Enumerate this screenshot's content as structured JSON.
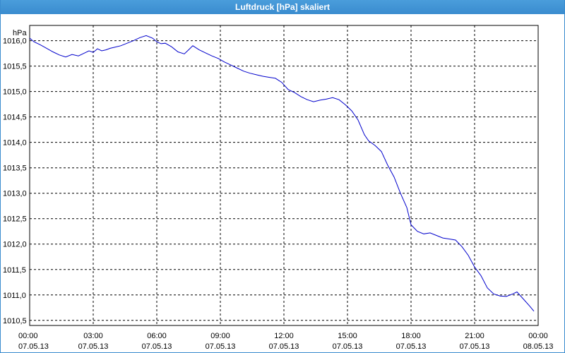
{
  "window": {
    "title": "Luftdruck [hPa] skaliert"
  },
  "colors": {
    "titlebar": "#3a8ccf",
    "line": "#0000cc",
    "grid": "#000000"
  },
  "chart_data": {
    "type": "line",
    "title": "Luftdruck [hPa] skaliert",
    "ylabel": "hPa",
    "xlabel": "",
    "x_unit": "hours since 07.05.13 00:00",
    "xlim": [
      0,
      24
    ],
    "ylim": [
      1010.4,
      1016.3
    ],
    "grid": true,
    "y_ticks": [
      "1010,5",
      "1011,0",
      "1011,5",
      "1012,0",
      "1012,5",
      "1013,0",
      "1013,5",
      "1014,0",
      "1014,5",
      "1015,0",
      "1015,5",
      "1016,0"
    ],
    "y_tick_values": [
      1010.5,
      1011.0,
      1011.5,
      1012.0,
      1012.5,
      1013.0,
      1013.5,
      1014.0,
      1014.5,
      1015.0,
      1015.5,
      1016.0
    ],
    "x_ticks": [
      {
        "time": "00:00",
        "date": "07.05.13",
        "x": 0
      },
      {
        "time": "03:00",
        "date": "07.05.13",
        "x": 3
      },
      {
        "time": "06:00",
        "date": "07.05.13",
        "x": 6
      },
      {
        "time": "09:00",
        "date": "07.05.13",
        "x": 9
      },
      {
        "time": "12:00",
        "date": "07.05.13",
        "x": 12
      },
      {
        "time": "15:00",
        "date": "07.05.13",
        "x": 15
      },
      {
        "time": "18:00",
        "date": "07.05.13",
        "x": 18
      },
      {
        "time": "21:00",
        "date": "07.05.13",
        "x": 21
      },
      {
        "time": "00:00",
        "date": "08.05.13",
        "x": 24
      }
    ],
    "series": [
      {
        "name": "",
        "x": [
          0,
          0.2,
          0.5,
          0.8,
          1.1,
          1.4,
          1.7,
          2.0,
          2.3,
          2.6,
          2.8,
          3.0,
          3.2,
          3.4,
          3.6,
          3.8,
          4.0,
          4.3,
          4.6,
          4.9,
          5.2,
          5.5,
          5.8,
          6.0,
          6.2,
          6.4,
          6.7,
          7.0,
          7.3,
          7.5,
          7.7,
          8.0,
          8.3,
          8.6,
          8.9,
          9.2,
          9.5,
          9.8,
          10.1,
          10.4,
          10.7,
          11.0,
          11.3,
          11.6,
          11.9,
          12.2,
          12.5,
          12.8,
          13.1,
          13.4,
          13.7,
          14.0,
          14.3,
          14.6,
          14.9,
          15.2,
          15.5,
          15.8,
          16.0,
          16.3,
          16.6,
          16.9,
          17.2,
          17.5,
          17.8,
          18.0,
          18.3,
          18.6,
          18.9,
          19.2,
          19.5,
          19.8,
          20.1,
          20.4,
          20.7,
          21.0,
          21.3,
          21.6,
          21.9,
          22.2,
          22.5,
          22.8,
          23.0,
          23.3,
          23.6,
          23.8
        ],
        "y": [
          1016.05,
          1015.98,
          1015.92,
          1015.85,
          1015.78,
          1015.72,
          1015.68,
          1015.73,
          1015.7,
          1015.76,
          1015.8,
          1015.77,
          1015.84,
          1015.8,
          1015.82,
          1015.85,
          1015.87,
          1015.9,
          1015.95,
          1016.0,
          1016.06,
          1016.1,
          1016.05,
          1015.98,
          1015.94,
          1015.95,
          1015.88,
          1015.78,
          1015.74,
          1015.82,
          1015.9,
          1015.82,
          1015.76,
          1015.7,
          1015.65,
          1015.58,
          1015.52,
          1015.46,
          1015.4,
          1015.36,
          1015.33,
          1015.3,
          1015.28,
          1015.26,
          1015.18,
          1015.04,
          1014.98,
          1014.9,
          1014.84,
          1014.8,
          1014.83,
          1014.85,
          1014.88,
          1014.84,
          1014.74,
          1014.62,
          1014.44,
          1014.15,
          1014.03,
          1013.94,
          1013.82,
          1013.55,
          1013.32,
          1013.0,
          1012.72,
          1012.38,
          1012.25,
          1012.2,
          1012.22,
          1012.17,
          1012.12,
          1012.1,
          1012.08,
          1011.95,
          1011.78,
          1011.55,
          1011.38,
          1011.14,
          1011.02,
          1010.98,
          1010.97,
          1011.02,
          1011.06,
          1010.92,
          1010.78,
          1010.68
        ]
      }
    ]
  }
}
